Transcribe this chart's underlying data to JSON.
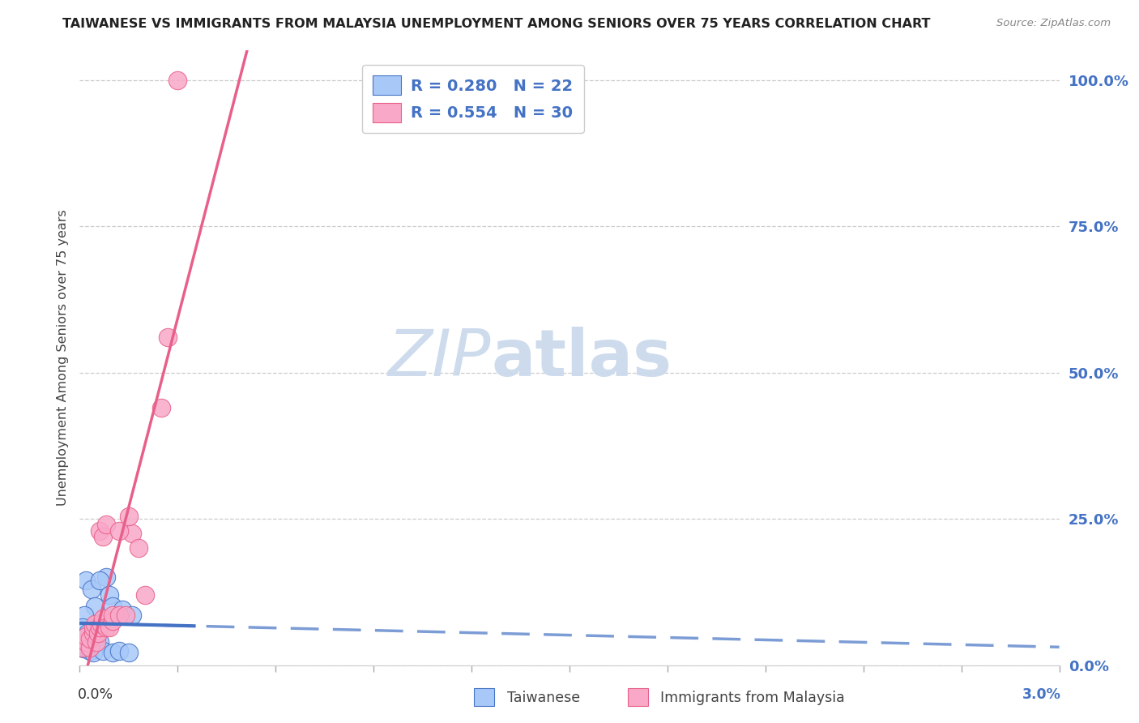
{
  "title": "TAIWANESE VS IMMIGRANTS FROM MALAYSIA UNEMPLOYMENT AMONG SENIORS OVER 75 YEARS CORRELATION CHART",
  "source": "Source: ZipAtlas.com",
  "ylabel": "Unemployment Among Seniors over 75 years",
  "y_tick_labels": [
    "0.0%",
    "25.0%",
    "50.0%",
    "75.0%",
    "100.0%"
  ],
  "y_tick_values": [
    0.0,
    25.0,
    50.0,
    75.0,
    100.0
  ],
  "legend_tw": "R = 0.280   N = 22",
  "legend_my": "R = 0.554   N = 30",
  "legend_label_tw": "Taiwanese",
  "legend_label_my": "Immigrants from Malaysia",
  "color_tw": "#a8c8f8",
  "color_my": "#f9a8c8",
  "line_color_tw": "#4472c4",
  "line_color_my": "#e8608a",
  "watermark_zip": "ZIP",
  "watermark_atlas": "atlas",
  "watermark_color_zip": "#c5d8ed",
  "watermark_color_atlas": "#c5d8ed",
  "background_color": "#ffffff",
  "tw_x": [
    0.02,
    0.035,
    0.045,
    0.015,
    0.01,
    0.025,
    0.05,
    0.06,
    0.02,
    0.012,
    0.03,
    0.04,
    0.07,
    0.1,
    0.12,
    0.15,
    0.08,
    0.06,
    0.09,
    0.1,
    0.13,
    0.16
  ],
  "tw_y": [
    14.5,
    13.0,
    10.0,
    8.5,
    6.5,
    5.5,
    4.5,
    4.0,
    3.0,
    2.8,
    2.5,
    2.2,
    2.5,
    2.2,
    2.5,
    2.2,
    15.0,
    14.5,
    12.0,
    10.0,
    9.5,
    8.5
  ],
  "my_x": [
    0.01,
    0.02,
    0.02,
    0.03,
    0.03,
    0.04,
    0.04,
    0.045,
    0.05,
    0.055,
    0.06,
    0.065,
    0.07,
    0.08,
    0.09,
    0.1,
    0.1,
    0.12,
    0.14,
    0.16,
    0.06,
    0.07,
    0.08,
    0.12,
    0.15,
    0.2,
    0.25,
    0.27,
    0.3,
    0.18
  ],
  "my_y": [
    3.0,
    4.0,
    5.0,
    3.0,
    4.5,
    5.5,
    6.5,
    7.0,
    4.0,
    5.5,
    6.5,
    7.0,
    8.0,
    6.5,
    6.5,
    7.5,
    8.5,
    8.5,
    8.5,
    22.5,
    23.0,
    22.0,
    24.0,
    23.0,
    25.5,
    12.0,
    44.0,
    56.0,
    100.0,
    20.0
  ],
  "xmin": 0.0,
  "xmax": 3.0,
  "ymin": 0.0,
  "ymax": 105.0
}
